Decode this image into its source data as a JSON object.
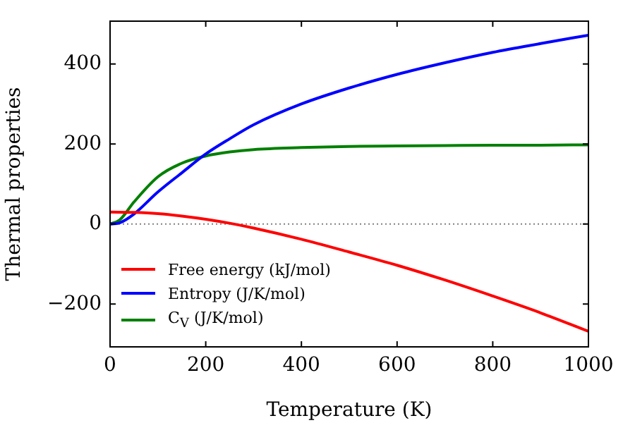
{
  "chart_data": {
    "type": "line",
    "xlabel": "Temperature (K)",
    "ylabel": "Thermal properties",
    "xlim": [
      0,
      1000
    ],
    "xticks": [
      0,
      200,
      400,
      600,
      800,
      1000
    ],
    "ylim": [
      -307,
      507
    ],
    "yticks": [
      -200,
      0,
      200,
      400
    ],
    "grid": false,
    "legend": "bottom left",
    "marker": "none",
    "line_style": "solid",
    "ref_lines": [
      {
        "axis": "y",
        "value": 0,
        "color": "#808080",
        "line_style": "dotted"
      }
    ],
    "series": [
      {
        "name": "Free energy (kJ/mol)",
        "color": "#ff0000",
        "x": [
          0,
          50,
          100,
          150,
          200,
          250,
          300,
          400,
          500,
          600,
          700,
          800,
          900,
          1000
        ],
        "values": [
          30,
          29,
          26,
          20,
          12,
          2,
          -10,
          -38,
          -70,
          -103,
          -140,
          -180,
          -222,
          -268
        ]
      },
      {
        "name": "Entropy (J/K/mol)",
        "color": "#0000ff",
        "x": [
          0,
          20,
          50,
          100,
          150,
          200,
          250,
          300,
          400,
          500,
          600,
          700,
          800,
          900,
          1000
        ],
        "values": [
          0,
          3,
          25,
          80,
          128,
          175,
          213,
          248,
          300,
          340,
          374,
          403,
          429,
          451,
          472
        ]
      },
      {
        "name": "C$_{V}$ (J/K/mol)",
        "color": "#008000",
        "x": [
          0,
          20,
          50,
          100,
          150,
          200,
          250,
          300,
          400,
          500,
          600,
          700,
          800,
          900,
          1000
        ],
        "values": [
          0,
          10,
          55,
          118,
          152,
          170,
          180,
          186,
          191,
          194,
          195,
          196,
          197,
          197,
          198
        ]
      }
    ]
  }
}
